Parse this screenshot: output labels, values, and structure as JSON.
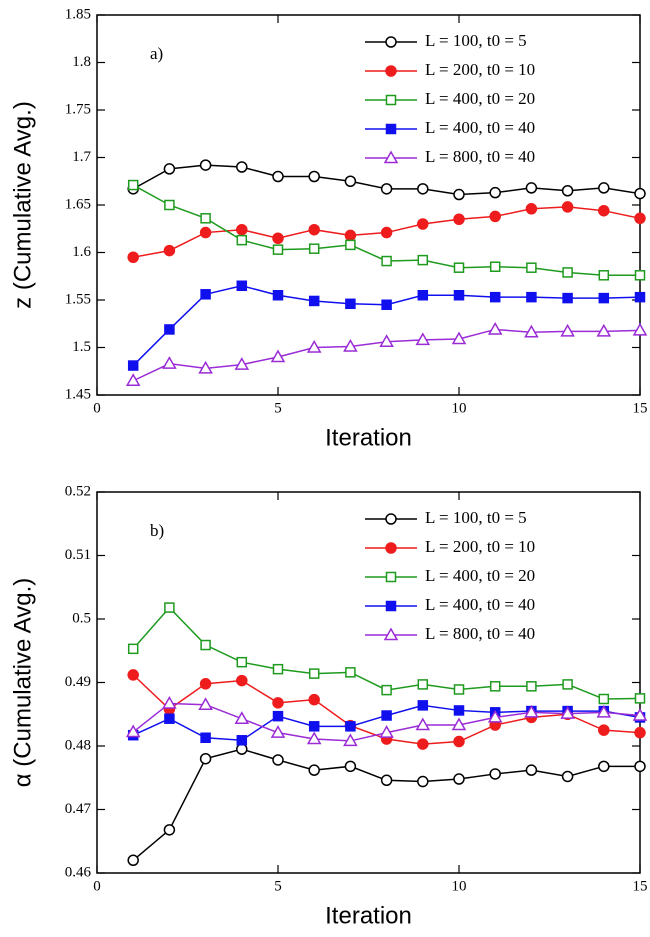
{
  "chart_data": [
    {
      "type": "line",
      "annotation": "a)",
      "xlabel": "Iteration",
      "ylabel": "z (Cumulative Avg.)",
      "xlim": [
        0,
        15
      ],
      "xticks": [
        0,
        5,
        10,
        15
      ],
      "ylim": [
        1.45,
        1.85
      ],
      "yticks": [
        1.45,
        1.5,
        1.55,
        1.6,
        1.65,
        1.7,
        1.75,
        1.8,
        1.85
      ],
      "legend": "top-right",
      "x": [
        1,
        2,
        3,
        4,
        5,
        6,
        7,
        8,
        9,
        10,
        11,
        12,
        13,
        14,
        15
      ],
      "series": [
        {
          "name": "L = 100, t0 = 5",
          "color": "#000000",
          "marker": "circle-open",
          "values": [
            1.667,
            1.688,
            1.692,
            1.69,
            1.68,
            1.68,
            1.675,
            1.667,
            1.667,
            1.661,
            1.663,
            1.668,
            1.665,
            1.668,
            1.662
          ]
        },
        {
          "name": "L = 200, t0 = 10",
          "color": "#ee1c1c",
          "marker": "circle",
          "values": [
            1.595,
            1.602,
            1.621,
            1.624,
            1.615,
            1.624,
            1.618,
            1.621,
            1.63,
            1.635,
            1.638,
            1.646,
            1.648,
            1.644,
            1.636
          ]
        },
        {
          "name": "L = 400, t0 = 20",
          "color": "#1e9a1e",
          "marker": "square-open",
          "values": [
            1.671,
            1.65,
            1.636,
            1.613,
            1.603,
            1.604,
            1.608,
            1.591,
            1.592,
            1.584,
            1.585,
            1.584,
            1.579,
            1.576,
            1.576
          ]
        },
        {
          "name": "L = 400, t0 = 40",
          "color": "#1010ee",
          "marker": "square",
          "values": [
            1.481,
            1.519,
            1.556,
            1.565,
            1.555,
            1.549,
            1.546,
            1.545,
            1.555,
            1.555,
            1.553,
            1.553,
            1.552,
            1.552,
            1.553
          ]
        },
        {
          "name": "L = 800, t0 = 40",
          "color": "#9a2bd6",
          "marker": "triangle-open",
          "values": [
            1.465,
            1.483,
            1.478,
            1.482,
            1.49,
            1.5,
            1.501,
            1.506,
            1.508,
            1.509,
            1.519,
            1.516,
            1.517,
            1.517,
            1.518
          ]
        }
      ]
    },
    {
      "type": "line",
      "annotation": "b)",
      "xlabel": "Iteration",
      "ylabel": "α (Cumulative Avg.)",
      "xlim": [
        0,
        15
      ],
      "xticks": [
        0,
        5,
        10,
        15
      ],
      "ylim": [
        0.46,
        0.52
      ],
      "yticks": [
        0.46,
        0.47,
        0.48,
        0.49,
        0.5,
        0.51,
        0.52
      ],
      "legend": "top-right",
      "x": [
        1,
        2,
        3,
        4,
        5,
        6,
        7,
        8,
        9,
        10,
        11,
        12,
        13,
        14,
        15
      ],
      "series": [
        {
          "name": "L = 100, t0 = 5",
          "color": "#000000",
          "marker": "circle-open",
          "values": [
            0.462,
            0.4668,
            0.478,
            0.4795,
            0.4778,
            0.4762,
            0.4768,
            0.4746,
            0.4744,
            0.4748,
            0.4756,
            0.4762,
            0.4752,
            0.4768,
            0.4768
          ]
        },
        {
          "name": "L = 200, t0 = 10",
          "color": "#ee1c1c",
          "marker": "circle",
          "values": [
            0.4912,
            0.4858,
            0.4898,
            0.4903,
            0.4868,
            0.4873,
            0.4832,
            0.4811,
            0.4803,
            0.4807,
            0.4833,
            0.4845,
            0.485,
            0.4825,
            0.4821
          ]
        },
        {
          "name": "L = 400, t0 = 20",
          "color": "#1e9a1e",
          "marker": "square-open",
          "values": [
            0.4953,
            0.5018,
            0.4959,
            0.4932,
            0.4921,
            0.4914,
            0.4916,
            0.4888,
            0.4897,
            0.4889,
            0.4894,
            0.4894,
            0.4897,
            0.4874,
            0.4875
          ]
        },
        {
          "name": "L = 400, t0 = 40",
          "color": "#1010ee",
          "marker": "square",
          "values": [
            0.4817,
            0.4843,
            0.4813,
            0.4809,
            0.4847,
            0.4831,
            0.4831,
            0.4848,
            0.4864,
            0.4856,
            0.4853,
            0.4855,
            0.4855,
            0.4855,
            0.4845
          ]
        },
        {
          "name": "L = 800, t0 = 40",
          "color": "#9a2bd6",
          "marker": "triangle-open",
          "values": [
            0.4822,
            0.4867,
            0.4865,
            0.4843,
            0.4821,
            0.4811,
            0.4808,
            0.4821,
            0.4833,
            0.4833,
            0.4845,
            0.4853,
            0.4851,
            0.4853,
            0.4848
          ]
        }
      ]
    }
  ]
}
